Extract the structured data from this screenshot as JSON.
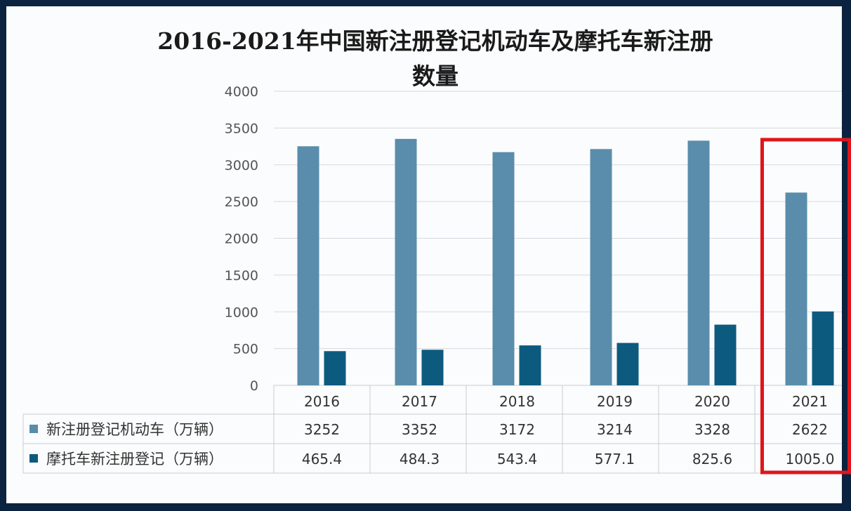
{
  "chart_data": {
    "type": "bar",
    "title": "2016-2021年中国新注册登记机动车及摩托车新注册数量",
    "title_lines": [
      "2016-2021年中国新注册登记机动车及摩托车新注册",
      "数量"
    ],
    "categories": [
      "2016",
      "2017",
      "2018",
      "2019",
      "2020",
      "2021"
    ],
    "series": [
      {
        "name": "新注册登记机动车（万辆）",
        "values": [
          3252,
          3352,
          3172,
          3214,
          3328,
          2622
        ],
        "labels": [
          "3252",
          "3352",
          "3172",
          "3214",
          "3328",
          "2622"
        ],
        "color": "#5a8dab"
      },
      {
        "name": "摩托车新注册登记（万辆）",
        "values": [
          465.4,
          484.3,
          543.4,
          577.1,
          825.6,
          1005.0
        ],
        "labels": [
          "465.4",
          "484.3",
          "543.4",
          "577.1",
          "825.6",
          "1005.0"
        ],
        "color": "#0d5a7f"
      }
    ],
    "ylim": [
      0,
      4000
    ],
    "yticks": [
      "0",
      "500",
      "1000",
      "1500",
      "2000",
      "2500",
      "3000",
      "3500",
      "4000"
    ],
    "grid": true,
    "legend": "data-table",
    "highlight_category": "2021",
    "highlight_color": "#e0151b"
  }
}
